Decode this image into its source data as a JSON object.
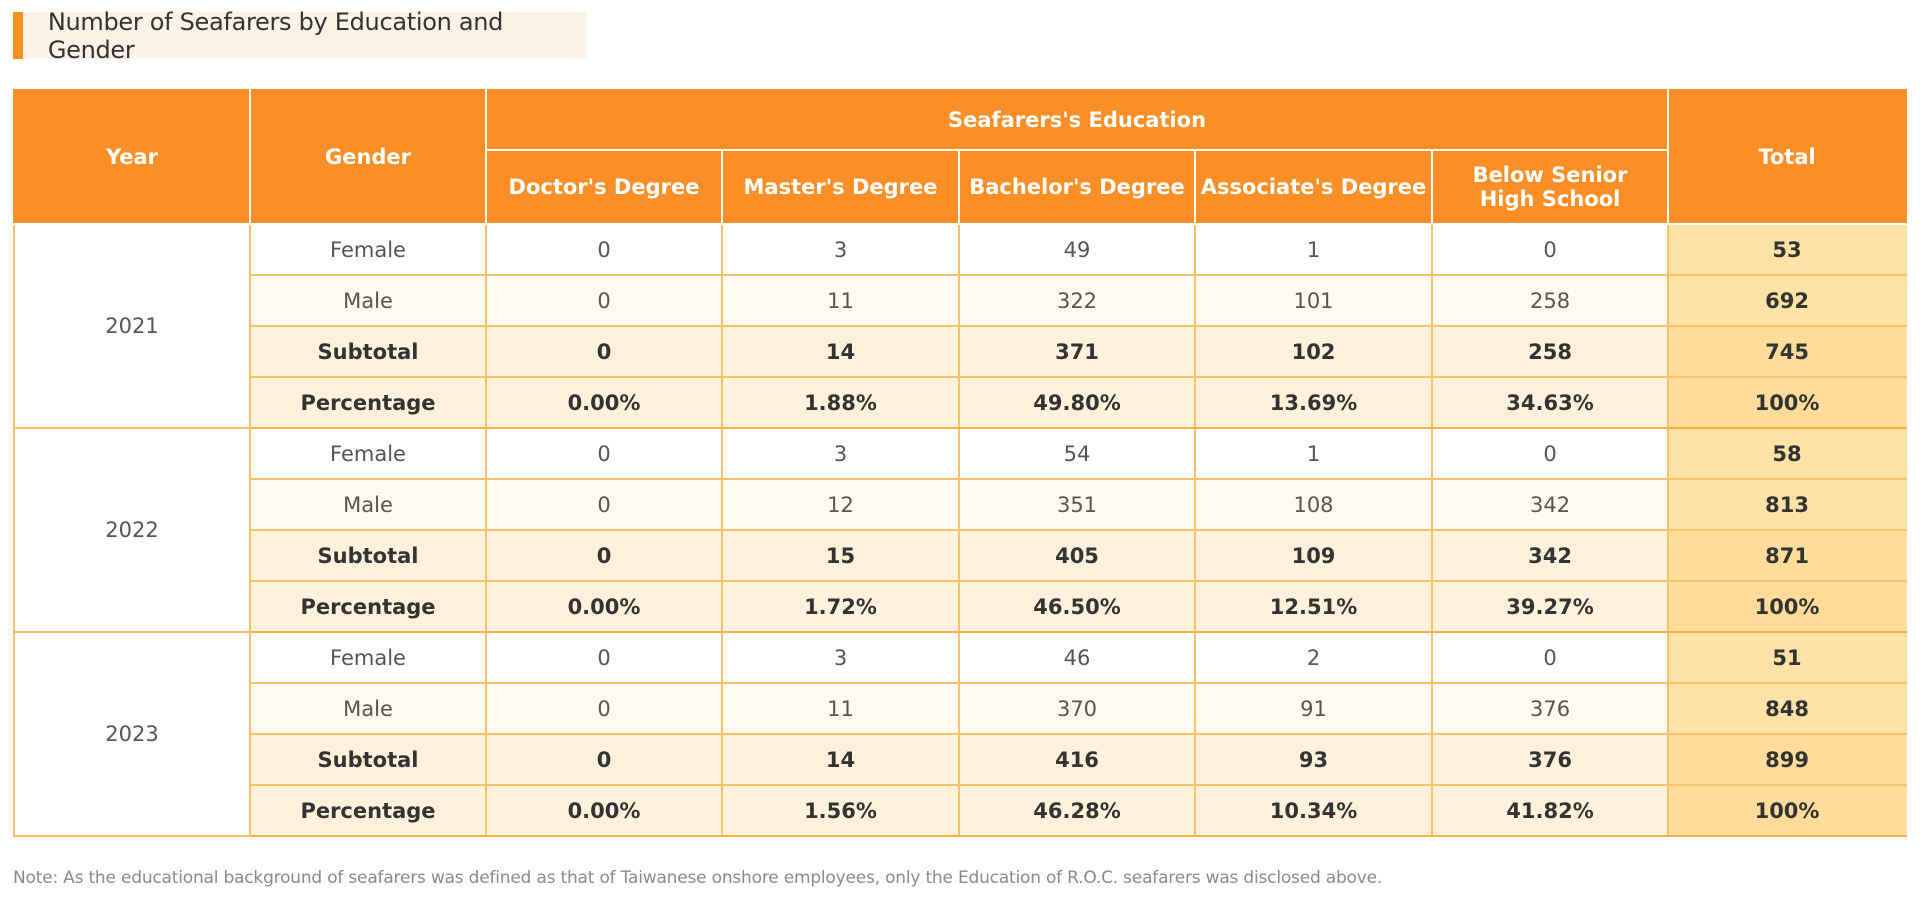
{
  "title": "Number of Seafarers by Education and Gender",
  "header": {
    "year": "Year",
    "gender": "Gender",
    "education_group": "Seafarers's Education",
    "total": "Total",
    "education_levels": [
      "Doctor's Degree",
      "Master's Degree",
      "Bachelor's Degree",
      "Associate's Degree",
      "Below Senior High School"
    ]
  },
  "years": [
    {
      "year": "2021",
      "rows": [
        {
          "label": "Female",
          "values": [
            "0",
            "3",
            "49",
            "1",
            "0"
          ],
          "total": "53"
        },
        {
          "label": "Male",
          "values": [
            "0",
            "11",
            "322",
            "101",
            "258"
          ],
          "total": "692"
        },
        {
          "label": "Subtotal",
          "values": [
            "0",
            "14",
            "371",
            "102",
            "258"
          ],
          "total": "745"
        },
        {
          "label": "Percentage",
          "values": [
            "0.00%",
            "1.88%",
            "49.80%",
            "13.69%",
            "34.63%"
          ],
          "total": "100%"
        }
      ]
    },
    {
      "year": "2022",
      "rows": [
        {
          "label": "Female",
          "values": [
            "0",
            "3",
            "54",
            "1",
            "0"
          ],
          "total": "58"
        },
        {
          "label": "Male",
          "values": [
            "0",
            "12",
            "351",
            "108",
            "342"
          ],
          "total": "813"
        },
        {
          "label": "Subtotal",
          "values": [
            "0",
            "15",
            "405",
            "109",
            "342"
          ],
          "total": "871"
        },
        {
          "label": "Percentage",
          "values": [
            "0.00%",
            "1.72%",
            "46.50%",
            "12.51%",
            "39.27%"
          ],
          "total": "100%"
        }
      ]
    },
    {
      "year": "2023",
      "rows": [
        {
          "label": "Female",
          "values": [
            "0",
            "3",
            "46",
            "2",
            "0"
          ],
          "total": "51"
        },
        {
          "label": "Male",
          "values": [
            "0",
            "11",
            "370",
            "91",
            "376"
          ],
          "total": "848"
        },
        {
          "label": "Subtotal",
          "values": [
            "0",
            "14",
            "416",
            "93",
            "376"
          ],
          "total": "899"
        },
        {
          "label": "Percentage",
          "values": [
            "0.00%",
            "1.56%",
            "46.28%",
            "10.34%",
            "41.82%"
          ],
          "total": "100%"
        }
      ]
    }
  ],
  "note": "Note: As the educational background of seafarers was defined as that of Taiwanese onshore employees, only the Education of R.O.C. seafarers was disclosed above.",
  "colors": {
    "accent": "#f98e26",
    "year_text": "#f08a1e",
    "border": "#f7c26a"
  }
}
